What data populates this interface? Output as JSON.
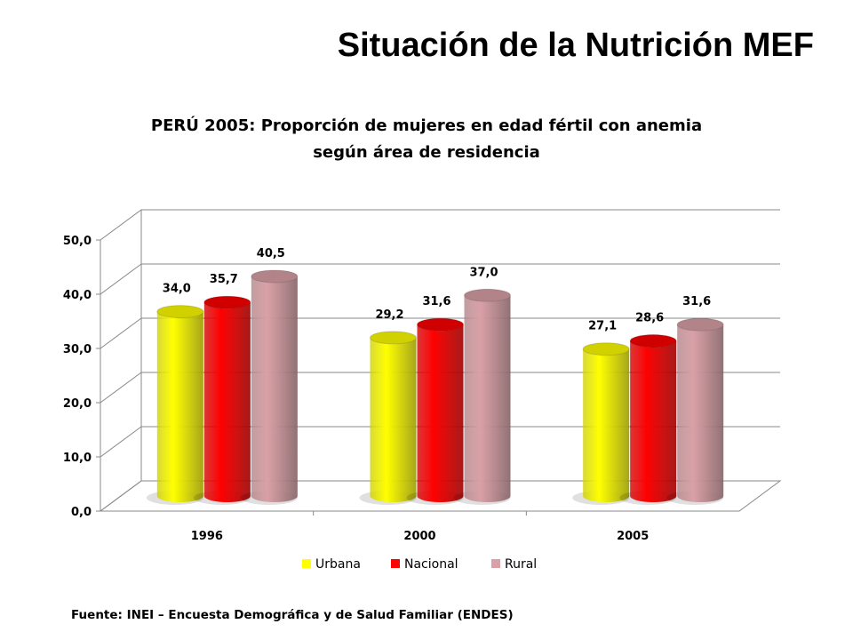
{
  "slide": {
    "title": "Situación de la Nutrición MEF",
    "source": "Fuente: INEI – Encuesta Demográfica y de Salud Familiar (ENDES)"
  },
  "chart_data": {
    "type": "bar",
    "title_line1": "PERÚ 2005: Proporción de mujeres en edad fértil con anemia",
    "title_line2": "según área de residencia",
    "categories": [
      "1996",
      "2000",
      "2005"
    ],
    "series": [
      {
        "name": "Urbana",
        "values": [
          34.0,
          29.2,
          27.1
        ],
        "color": "#ffff00",
        "labels": [
          "34,0",
          "29,2",
          "27,1"
        ]
      },
      {
        "name": "Nacional",
        "values": [
          35.7,
          31.6,
          28.6
        ],
        "color": "#ff0000",
        "labels": [
          "35,7",
          "31,6",
          "28,6"
        ]
      },
      {
        "name": "Rural",
        "values": [
          40.5,
          37.0,
          31.6
        ],
        "color": "#d9a0a6",
        "labels": [
          "40,5",
          "37,0",
          "31,6"
        ]
      }
    ],
    "y_ticks": [
      "0,0",
      "10,0",
      "20,0",
      "30,0",
      "40,0",
      "50,0"
    ],
    "ylim": [
      0,
      50
    ],
    "grid": true,
    "legend_position": "bottom"
  }
}
